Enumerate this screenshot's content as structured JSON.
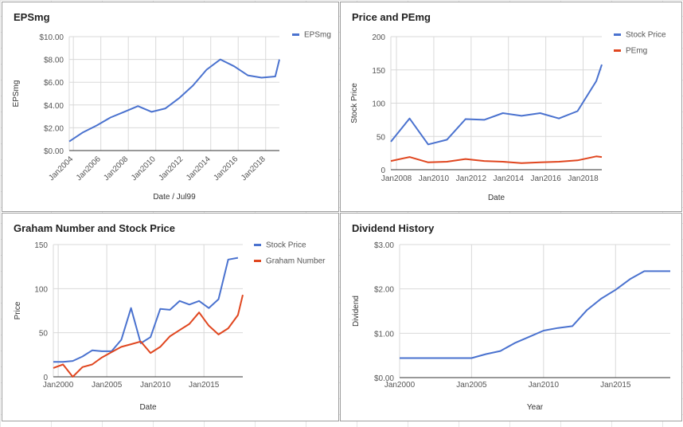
{
  "colors": {
    "blue": "#4a72cf",
    "red": "#e0461f",
    "grid": "#d9d9d9",
    "axis": "#333333",
    "tick": "#555555"
  },
  "chart_data": [
    {
      "id": "eps",
      "type": "line",
      "title": "EPSmg",
      "xlabel": "Date / Jul99",
      "ylabel": "EPSmg",
      "xlim": [
        2003.7,
        2019.0
      ],
      "ylim": [
        0,
        10
      ],
      "yticks": [
        {
          "v": 0,
          "label": "$0.00"
        },
        {
          "v": 2,
          "label": "$2.00"
        },
        {
          "v": 4,
          "label": "$4.00"
        },
        {
          "v": 6,
          "label": "$6.00"
        },
        {
          "v": 8,
          "label": "$8.00"
        },
        {
          "v": 10,
          "label": "$10.00"
        }
      ],
      "xticks": [
        {
          "v": 2004,
          "label": "Jan2004"
        },
        {
          "v": 2006,
          "label": "Jan2006"
        },
        {
          "v": 2008,
          "label": "Jan2008"
        },
        {
          "v": 2010,
          "label": "Jan2010"
        },
        {
          "v": 2012,
          "label": "Jan2012"
        },
        {
          "v": 2014,
          "label": "Jan2014"
        },
        {
          "v": 2016,
          "label": "Jan2016"
        },
        {
          "v": 2018,
          "label": "Jan2018"
        }
      ],
      "x_rotated": true,
      "legend_position": "top-right",
      "series": [
        {
          "name": "EPSmg",
          "color": "#4a72cf",
          "x": [
            2003.7,
            2004.7,
            2005.7,
            2006.7,
            2007.7,
            2008.7,
            2009.7,
            2010.7,
            2011.7,
            2012.7,
            2013.7,
            2014.7,
            2015.7,
            2016.7,
            2017.7,
            2018.7,
            2019.0
          ],
          "y": [
            0.8,
            1.6,
            2.2,
            2.9,
            3.4,
            3.9,
            3.4,
            3.7,
            4.6,
            5.7,
            7.1,
            8.0,
            7.4,
            6.6,
            6.4,
            6.5,
            8.0
          ]
        }
      ]
    },
    {
      "id": "price-pe",
      "type": "line",
      "title": "Price and PEmg",
      "xlabel": "Date",
      "ylabel": "Stock Price",
      "xlim": [
        2007.7,
        2019.0
      ],
      "ylim": [
        0,
        200
      ],
      "yticks": [
        {
          "v": 0,
          "label": "0"
        },
        {
          "v": 50,
          "label": "50"
        },
        {
          "v": 100,
          "label": "100"
        },
        {
          "v": 150,
          "label": "150"
        },
        {
          "v": 200,
          "label": "200"
        }
      ],
      "xticks": [
        {
          "v": 2008,
          "label": "Jan2008"
        },
        {
          "v": 2010,
          "label": "Jan2010"
        },
        {
          "v": 2012,
          "label": "Jan2012"
        },
        {
          "v": 2014,
          "label": "Jan2014"
        },
        {
          "v": 2016,
          "label": "Jan2016"
        },
        {
          "v": 2018,
          "label": "Jan2018"
        }
      ],
      "x_rotated": false,
      "legend_position": "top-right",
      "series": [
        {
          "name": "Stock Price",
          "color": "#4a72cf",
          "x": [
            2007.7,
            2008.7,
            2009.7,
            2010.7,
            2011.7,
            2012.7,
            2013.7,
            2014.7,
            2015.7,
            2016.7,
            2017.7,
            2018.7,
            2019.0
          ],
          "y": [
            42,
            77,
            38,
            45,
            76,
            75,
            85,
            81,
            85,
            77,
            88,
            133,
            158
          ]
        },
        {
          "name": "PEmg",
          "color": "#e0461f",
          "x": [
            2007.7,
            2008.7,
            2009.7,
            2010.7,
            2011.7,
            2012.7,
            2013.7,
            2014.7,
            2015.7,
            2016.7,
            2017.7,
            2018.7,
            2019.0
          ],
          "y": [
            13,
            19,
            11,
            12,
            16,
            13,
            12,
            10,
            11,
            12,
            14,
            20,
            19
          ]
        }
      ]
    },
    {
      "id": "graham",
      "type": "line",
      "title": "Graham Number and Stock Price",
      "xlabel": "Date",
      "ylabel": "Price",
      "xlim": [
        1999.5,
        2019.0
      ],
      "ylim": [
        0,
        150
      ],
      "yticks": [
        {
          "v": 0,
          "label": "0"
        },
        {
          "v": 50,
          "label": "50"
        },
        {
          "v": 100,
          "label": "100"
        },
        {
          "v": 150,
          "label": "150"
        }
      ],
      "xticks": [
        {
          "v": 2000,
          "label": "Jan2000"
        },
        {
          "v": 2005,
          "label": "Jan2005"
        },
        {
          "v": 2010,
          "label": "Jan2010"
        },
        {
          "v": 2015,
          "label": "Jan2015"
        }
      ],
      "x_rotated": false,
      "legend_position": "top-right",
      "series": [
        {
          "name": "Stock Price",
          "color": "#4a72cf",
          "x": [
            1999.5,
            2000.5,
            2001.5,
            2002.5,
            2003.5,
            2004.5,
            2005.5,
            2006.5,
            2007.5,
            2008.5,
            2009.5,
            2010.5,
            2011.5,
            2012.5,
            2013.5,
            2014.5,
            2015.5,
            2016.5,
            2017.5,
            2018.5
          ],
          "y": [
            17,
            17,
            18,
            23,
            30,
            29,
            29,
            42,
            78,
            38,
            45,
            77,
            76,
            86,
            82,
            86,
            78,
            88,
            133,
            135
          ]
        },
        {
          "name": "Graham Number",
          "color": "#e0461f",
          "x": [
            1999.5,
            2000.5,
            2001.5,
            2002.5,
            2003.5,
            2004.5,
            2005.5,
            2006.5,
            2007.5,
            2008.5,
            2009.5,
            2010.5,
            2011.5,
            2012.5,
            2013.5,
            2014.5,
            2015.5,
            2016.5,
            2017.5,
            2018.5,
            2019.0
          ],
          "y": [
            10,
            14,
            0,
            11,
            14,
            22,
            28,
            34,
            37,
            40,
            27,
            34,
            46,
            53,
            60,
            73,
            58,
            48,
            55,
            70,
            93
          ]
        }
      ]
    },
    {
      "id": "dividend",
      "type": "line",
      "title": "Dividend History",
      "xlabel": "Year",
      "ylabel": "Dividend",
      "xlim": [
        2000,
        2018.8
      ],
      "ylim": [
        0,
        3
      ],
      "yticks": [
        {
          "v": 0,
          "label": "$0.00"
        },
        {
          "v": 1,
          "label": "$1.00"
        },
        {
          "v": 2,
          "label": "$2.00"
        },
        {
          "v": 3,
          "label": "$3.00"
        }
      ],
      "xticks": [
        {
          "v": 2000,
          "label": "Jan2000"
        },
        {
          "v": 2005,
          "label": "Jan2005"
        },
        {
          "v": 2010,
          "label": "Jan2010"
        },
        {
          "v": 2015,
          "label": "Jan2015"
        }
      ],
      "x_rotated": false,
      "series": [
        {
          "name": "Dividend",
          "color": "#4a72cf",
          "x": [
            2000,
            2001,
            2002,
            2003,
            2004,
            2005,
            2006,
            2007,
            2008,
            2009,
            2010,
            2011,
            2012,
            2013,
            2014,
            2015,
            2016,
            2017,
            2018.8
          ],
          "y": [
            0.44,
            0.44,
            0.44,
            0.44,
            0.44,
            0.44,
            0.53,
            0.6,
            0.78,
            0.92,
            1.06,
            1.12,
            1.16,
            1.52,
            1.78,
            1.98,
            2.22,
            2.4,
            2.4
          ]
        }
      ]
    }
  ]
}
